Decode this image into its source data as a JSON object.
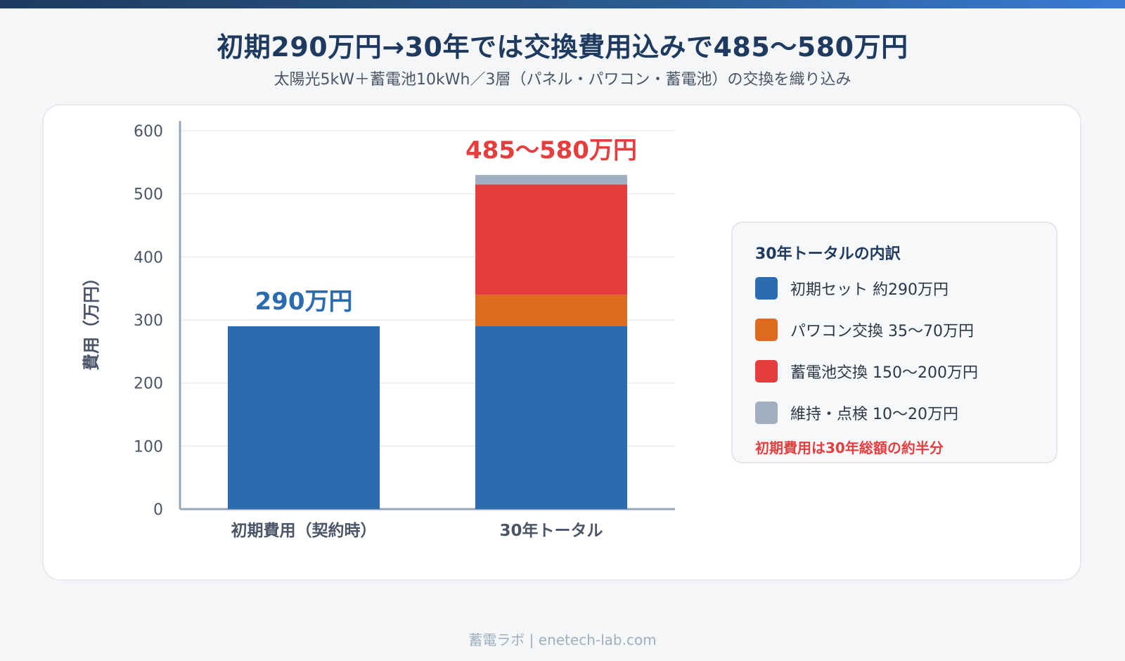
{
  "header": {
    "title": "初期290万円→30年では交換費用込みで485〜580万円",
    "subtitle": "太陽光5kW＋蓄電池10kWh／3層（パネル・パワコン・蓄電池）の交換を織り込み"
  },
  "chart_data": {
    "type": "bar",
    "stacked": true,
    "categories": [
      "初期費用（契約時）",
      "30年トータル"
    ],
    "ylabel": "費用（万円）",
    "ylim": [
      0,
      600
    ],
    "yticks": [
      0,
      100,
      200,
      300,
      400,
      500,
      600
    ],
    "grid": true,
    "legend_placement": "right",
    "series": [
      {
        "name": "初期セット 約290万円",
        "color": "#2b6cb0",
        "values": [
          290,
          290
        ]
      },
      {
        "name": "パワコン交換 35〜70万円",
        "color": "#dd6b20",
        "values": [
          0,
          50
        ]
      },
      {
        "name": "蓄電池交換 150〜200万円",
        "color": "#e53e3e",
        "values": [
          0,
          175
        ]
      },
      {
        "name": "維持・点検 10〜20万円",
        "color": "#a0aec0",
        "values": [
          0,
          15
        ]
      }
    ],
    "bar_labels": [
      {
        "text": "290万円",
        "color": "#2b6cb0"
      },
      {
        "text": "485〜580万円",
        "color": "#e53e3e"
      }
    ]
  },
  "legend": {
    "title": "30年トータルの内訳",
    "note": "初期費用は30年総額の約半分"
  },
  "footer": {
    "text": "蓄電ラボ | enetech-lab.com"
  }
}
